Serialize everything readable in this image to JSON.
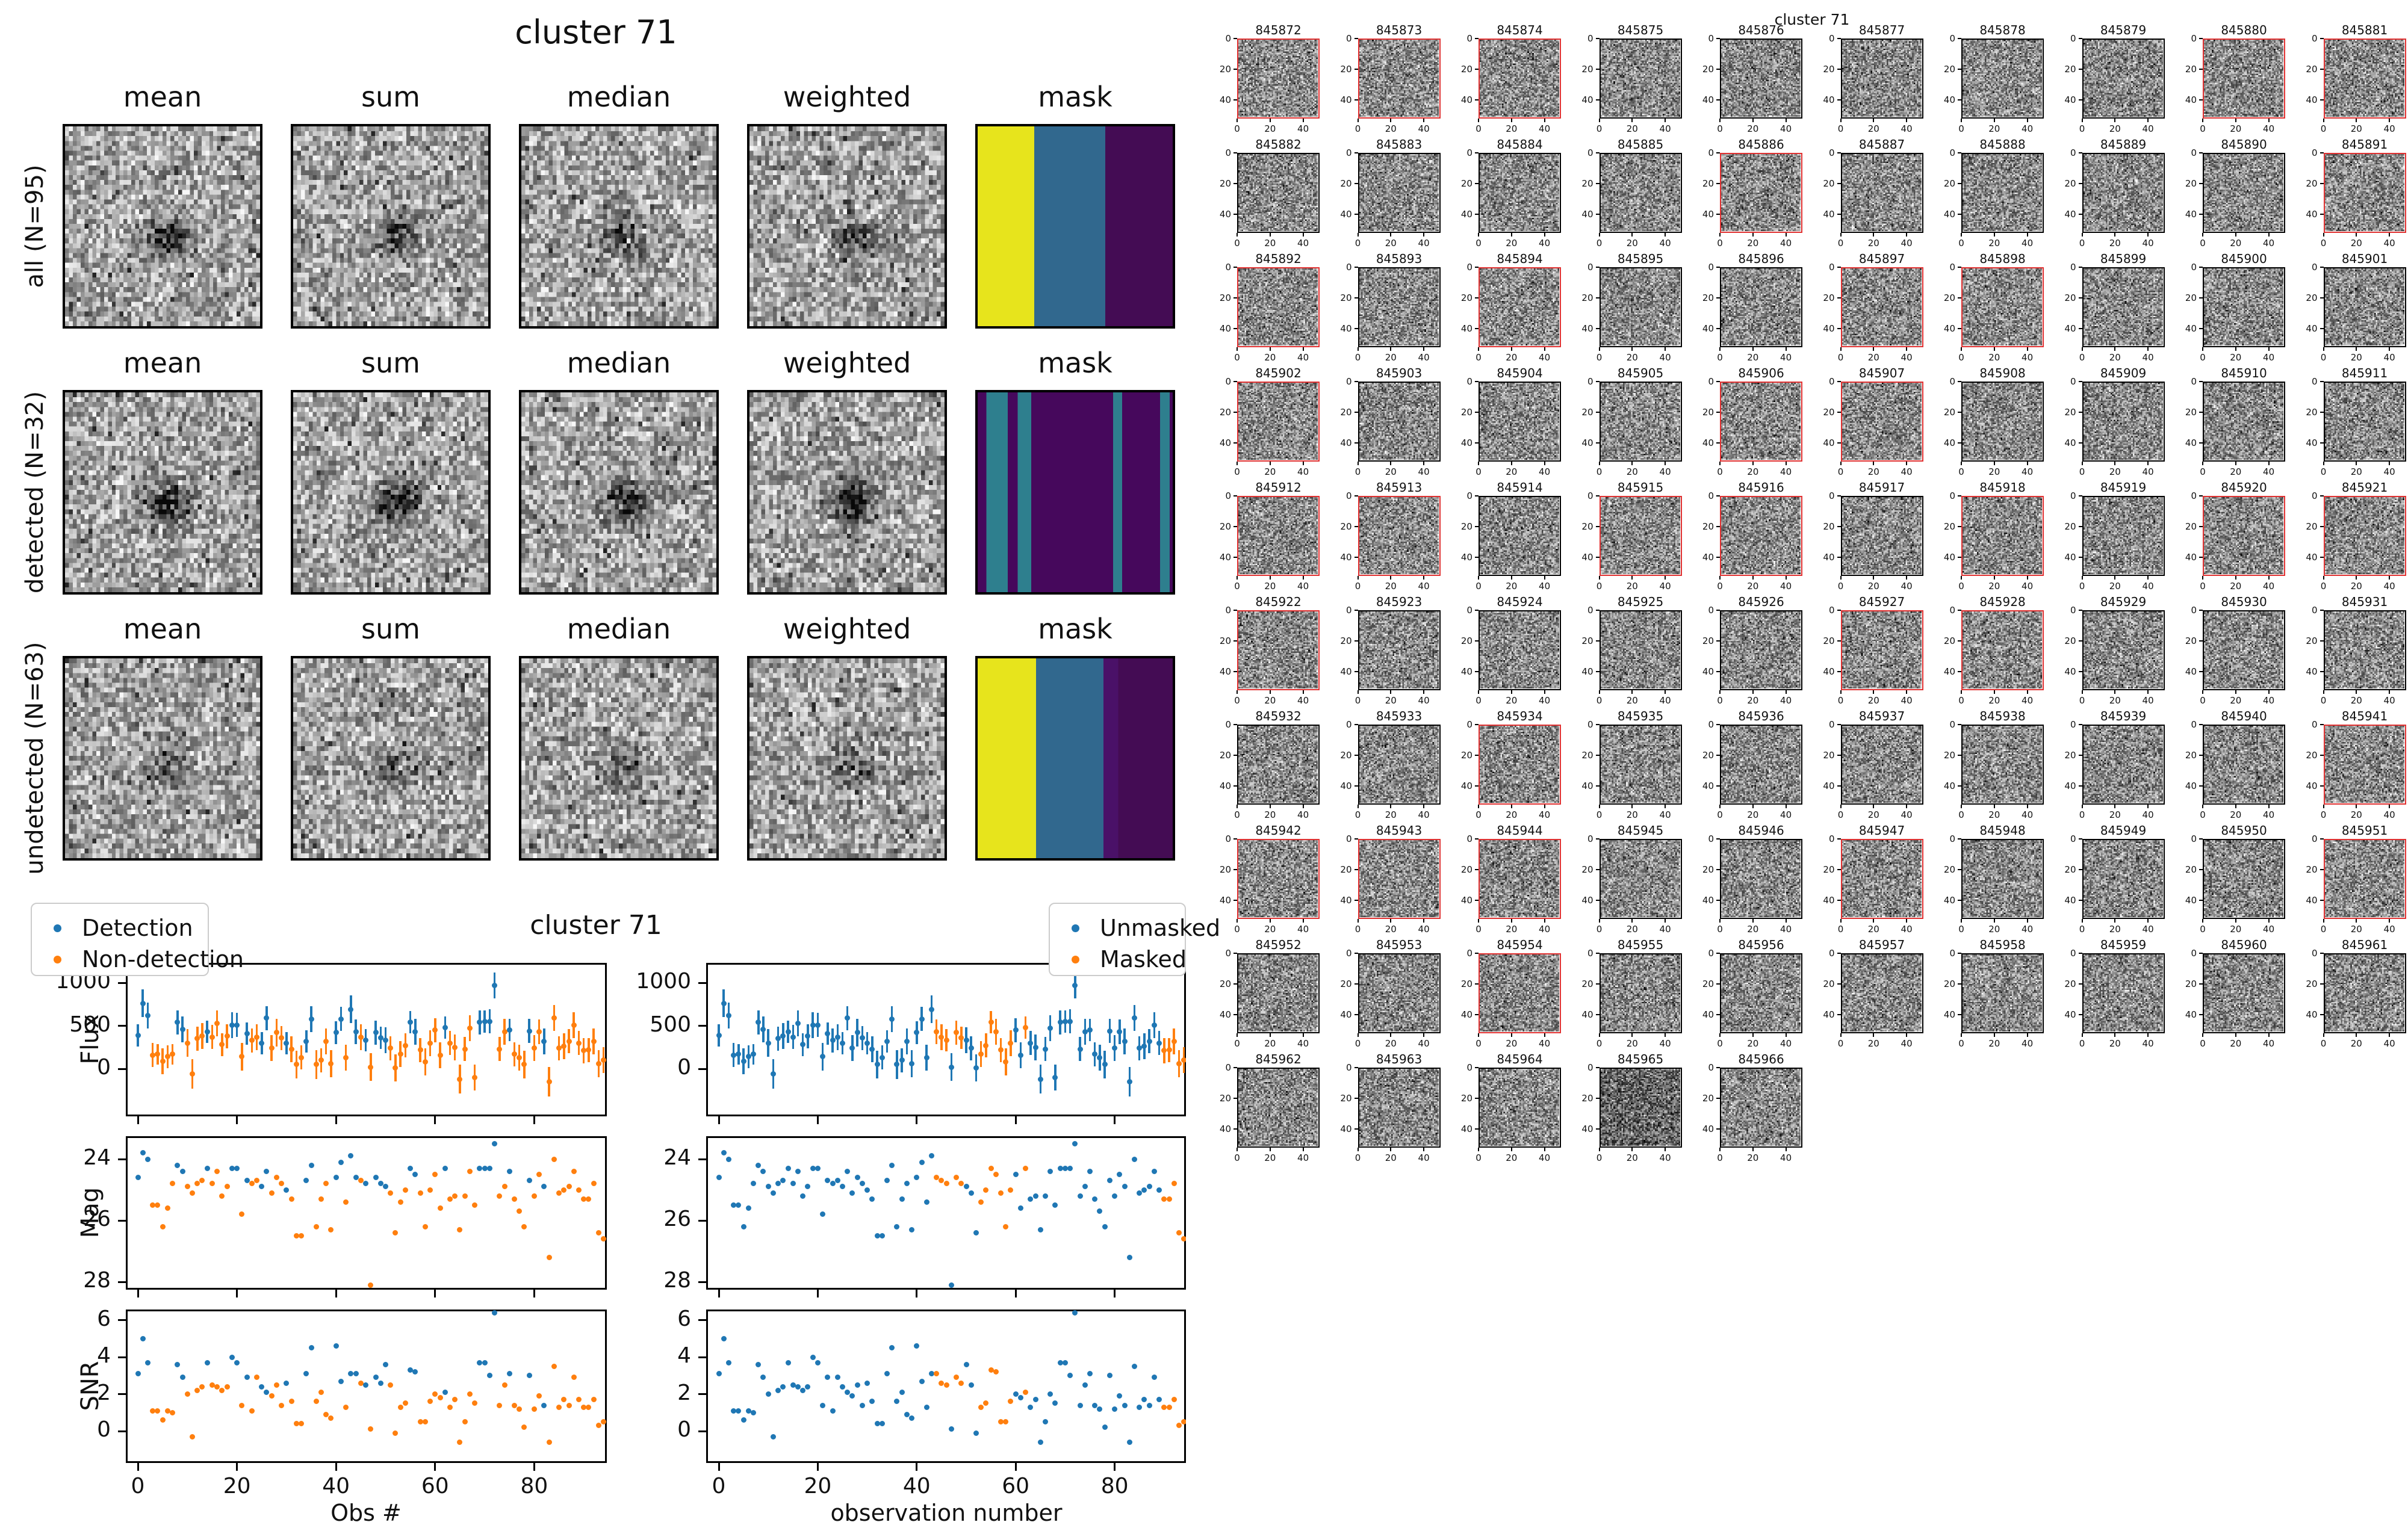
{
  "left_panel": {
    "title": "cluster 71",
    "column_headers": [
      "mean",
      "sum",
      "median",
      "weighted",
      "mask"
    ],
    "rows": [
      {
        "label": "all (N=95)",
        "mask_bands": [
          {
            "color": "#e7e41c",
            "to": 0.29
          },
          {
            "color": "#31688e",
            "to": 0.655
          },
          {
            "color": "#440c54",
            "to": 1
          }
        ]
      },
      {
        "label": "detected (N=32)",
        "mask_bands": [
          {
            "color": "#46085c",
            "to": 0.045
          },
          {
            "color": "#2e7f8e",
            "to": 0.155
          },
          {
            "color": "#46085c",
            "to": 0.205
          },
          {
            "color": "#2e7f8e",
            "to": 0.275
          },
          {
            "color": "#46085c",
            "to": 0.695
          },
          {
            "color": "#2e7f8e",
            "to": 0.74
          },
          {
            "color": "#46085c",
            "to": 0.935
          },
          {
            "color": "#2e7f8e",
            "to": 0.985
          },
          {
            "color": "#46085c",
            "to": 1
          }
        ]
      },
      {
        "label": "undetected (N=63)",
        "mask_bands": [
          {
            "color": "#e7e41c",
            "to": 0.3
          },
          {
            "color": "#31688e",
            "to": 0.645
          },
          {
            "color": "#4a1168",
            "to": 0.72
          },
          {
            "color": "#440c54",
            "to": 1
          }
        ]
      }
    ]
  },
  "bottom_panel": {
    "title": "cluster 71",
    "xlabel_left": "Obs #",
    "xlabel_right": "observation number",
    "legend_left": {
      "items": [
        {
          "label": "Detection",
          "color": "#1f77b4"
        },
        {
          "label": "Non-detection",
          "color": "#ff7f0e"
        }
      ]
    },
    "legend_right": {
      "items": [
        {
          "label": "Unmasked",
          "color": "#1f77b4"
        },
        {
          "label": "Masked",
          "color": "#ff7f0e"
        }
      ]
    }
  },
  "chart_data": {
    "type": "scatter",
    "title": "cluster 71",
    "panels": [
      {
        "ylabel": "Flux",
        "yticks": [
          0,
          500,
          1000
        ],
        "ylim": [
          -560,
          1230
        ],
        "errorbars": true
      },
      {
        "ylabel": "Mag",
        "yticks": [
          24,
          26,
          28
        ],
        "ylim": [
          28.25,
          23.25
        ],
        "errorbars": false
      },
      {
        "ylabel": "SNR",
        "yticks": [
          0,
          2,
          4,
          6
        ],
        "ylim": [
          -1.74,
          6.6
        ],
        "errorbars": false
      }
    ],
    "xticks": [
      0,
      20,
      40,
      60,
      80
    ],
    "xlim": [
      -3,
      97
    ],
    "n_obs": 95,
    "colors": {
      "detection": "#1f77b4",
      "non_detection": "#ff7f0e",
      "unmasked": "#1f77b4",
      "masked": "#ff7f0e"
    },
    "flux": [
      390,
      760,
      620,
      160,
      170,
      90,
      140,
      170,
      540,
      460,
      300,
      -60,
      350,
      380,
      430,
      370,
      530,
      280,
      380,
      510,
      510,
      140,
      410,
      330,
      370,
      300,
      590,
      240,
      420,
      360,
      300,
      230,
      50,
      130,
      320,
      580,
      50,
      100,
      320,
      60,
      420,
      580,
      130,
      690,
      430,
      370,
      330,
      20,
      420,
      360,
      330,
      240,
      10,
      170,
      270,
      540,
      430,
      220,
      80,
      300,
      450,
      160,
      480,
      300,
      250,
      -120,
      230,
      470,
      -100,
      540,
      550,
      550,
      970,
      230,
      430,
      450,
      170,
      130,
      50,
      440,
      240,
      430,
      320,
      -150,
      590,
      240,
      260,
      320,
      510,
      300,
      210,
      220,
      320,
      60,
      100
    ],
    "flux_err": [
      130,
      160,
      150,
      140,
      120,
      150,
      130,
      120,
      140,
      150,
      160,
      170,
      140,
      150,
      130,
      140,
      150,
      130,
      140,
      150,
      140,
      160,
      130,
      140,
      150,
      130,
      140,
      150,
      160,
      140,
      130,
      150,
      160,
      140,
      130,
      150,
      170,
      140,
      150,
      160,
      130,
      140,
      150,
      160,
      140,
      150,
      130,
      160,
      140,
      130,
      150,
      140,
      160,
      150,
      140,
      130,
      150,
      140,
      160,
      150,
      140,
      150,
      130,
      140,
      150,
      170,
      140,
      150,
      150,
      140,
      130,
      140,
      150,
      140,
      150,
      130,
      140,
      150,
      160,
      140,
      150,
      140,
      150,
      170,
      150,
      140,
      150,
      140,
      150,
      140,
      150,
      140,
      150,
      160,
      150
    ],
    "mag": [
      24.6,
      23.8,
      24.0,
      25.5,
      25.5,
      26.2,
      25.6,
      24.8,
      24.2,
      24.4,
      24.9,
      25.1,
      24.8,
      24.7,
      24.3,
      24.8,
      24.4,
      25.2,
      24.9,
      24.3,
      24.3,
      25.8,
      24.7,
      24.8,
      24.7,
      24.9,
      24.4,
      25.1,
      24.6,
      24.8,
      25.0,
      25.3,
      26.5,
      26.5,
      24.7,
      24.2,
      26.2,
      25.3,
      24.8,
      26.3,
      24.6,
      24.1,
      25.4,
      23.9,
      24.6,
      24.7,
      24.8,
      28.1,
      24.6,
      24.8,
      24.9,
      25.1,
      26.4,
      25.4,
      25.0,
      24.3,
      24.5,
      25.1,
      26.2,
      25.0,
      24.5,
      25.6,
      24.3,
      25.3,
      25.2,
      26.3,
      25.2,
      24.4,
      25.5,
      24.3,
      24.3,
      24.3,
      23.5,
      25.2,
      24.9,
      24.4,
      25.3,
      25.7,
      26.2,
      24.7,
      25.2,
      24.5,
      24.9,
      27.2,
      24.0,
      25.1,
      25.0,
      24.9,
      24.4,
      25.0,
      25.3,
      25.3,
      24.8,
      26.4,
      26.6
    ],
    "snr": [
      3.1,
      5.0,
      3.7,
      1.1,
      1.1,
      0.6,
      1.1,
      1.0,
      3.6,
      2.9,
      2.0,
      -0.3,
      2.2,
      2.4,
      3.7,
      2.5,
      2.4,
      2.2,
      2.4,
      4.0,
      3.7,
      1.4,
      2.9,
      1.1,
      2.9,
      2.4,
      2.1,
      1.9,
      2.5,
      1.4,
      2.6,
      1.6,
      0.4,
      0.4,
      3.1,
      4.5,
      1.6,
      2.1,
      0.9,
      0.7,
      4.6,
      2.7,
      1.3,
      3.1,
      3.1,
      2.6,
      2.5,
      0.1,
      2.9,
      2.6,
      3.6,
      2.5,
      -0.1,
      1.3,
      1.5,
      3.3,
      3.2,
      0.5,
      0.5,
      1.6,
      2.0,
      1.8,
      2.1,
      1.3,
      1.7,
      -0.6,
      0.5,
      2.0,
      1.5,
      3.7,
      3.7,
      3.0,
      6.4,
      1.4,
      2.5,
      3.1,
      1.4,
      1.2,
      0.2,
      3.0,
      1.2,
      1.9,
      1.4,
      -0.6,
      3.5,
      1.3,
      1.7,
      1.4,
      2.9,
      1.7,
      1.3,
      1.3,
      1.7,
      0.3,
      0.5
    ],
    "detected_indices": [
      0,
      1,
      2,
      8,
      9,
      14,
      19,
      20,
      22,
      25,
      26,
      30,
      34,
      35,
      40,
      41,
      43,
      44,
      46,
      48,
      49,
      50,
      55,
      56,
      62,
      69,
      70,
      71,
      72,
      75,
      79,
      82
    ],
    "masked_indices": [
      44,
      45,
      46,
      48,
      49,
      53,
      54,
      55,
      56,
      57,
      58,
      59,
      62,
      90,
      91,
      92,
      93,
      94
    ]
  },
  "thumbnail_grid": {
    "suptitle": "cluster 71",
    "ids": [
      845872,
      845873,
      845874,
      845875,
      845876,
      845877,
      845878,
      845879,
      845880,
      845881,
      845882,
      845883,
      845884,
      845885,
      845886,
      845887,
      845888,
      845889,
      845890,
      845891,
      845892,
      845893,
      845894,
      845895,
      845896,
      845897,
      845898,
      845899,
      845900,
      845901,
      845902,
      845903,
      845904,
      845905,
      845906,
      845907,
      845908,
      845909,
      845910,
      845911,
      845912,
      845913,
      845914,
      845915,
      845916,
      845917,
      845918,
      845919,
      845920,
      845921,
      845922,
      845923,
      845924,
      845925,
      845926,
      845927,
      845928,
      845929,
      845930,
      845931,
      845932,
      845933,
      845934,
      845935,
      845936,
      845937,
      845938,
      845939,
      845940,
      845941,
      845942,
      845943,
      845944,
      845945,
      845946,
      845947,
      845948,
      845949,
      845950,
      845951,
      845952,
      845953,
      845954,
      845955,
      845956,
      845957,
      845958,
      845959,
      845960,
      845961,
      845962,
      845963,
      845964,
      845965,
      845966
    ],
    "red_indices": [
      0,
      1,
      2,
      8,
      9,
      14,
      19,
      20,
      22,
      25,
      26,
      30,
      34,
      35,
      40,
      41,
      43,
      44,
      46,
      48,
      49,
      50,
      55,
      56,
      62,
      69,
      70,
      71,
      72,
      75,
      79,
      82
    ],
    "x_ticks": [
      0,
      20,
      40
    ],
    "y_ticks": [
      0,
      20,
      40
    ],
    "red_border_color": "#e03131",
    "dark_thumbnail_id": 845965
  }
}
